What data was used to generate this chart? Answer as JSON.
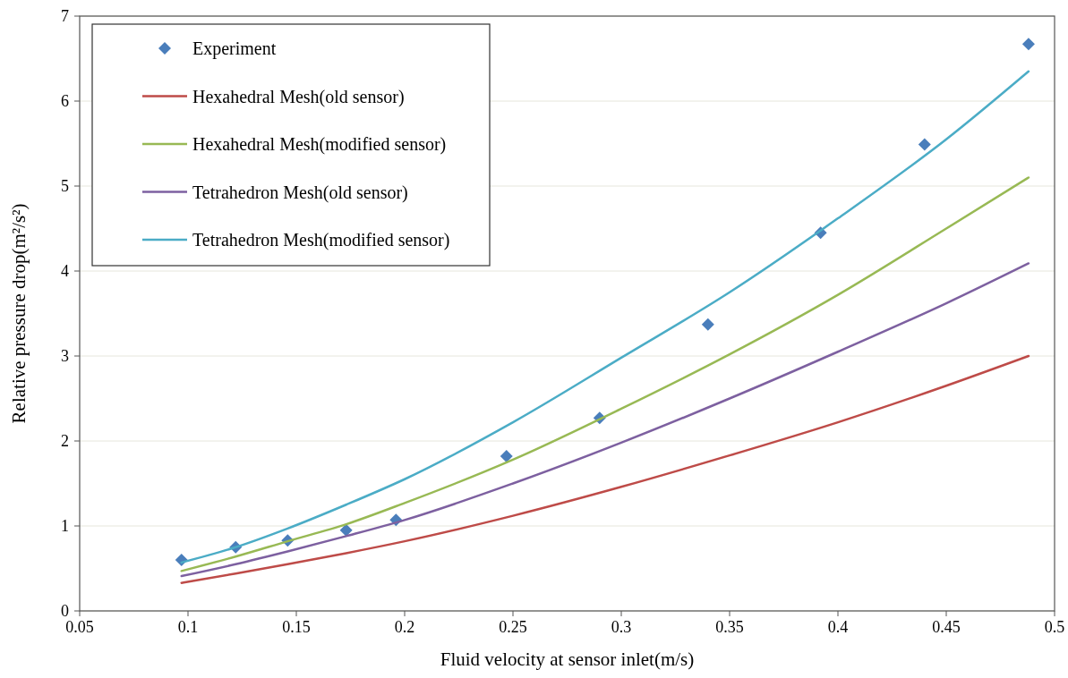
{
  "chart_data": {
    "type": "line",
    "xlabel": "Fluid velocity at sensor inlet(m/s)",
    "ylabel": "Relative pressure drop(m²/s²)",
    "xlim": [
      0.05,
      0.5
    ],
    "xticks": [
      0.05,
      0.1,
      0.15,
      0.2,
      0.25,
      0.3,
      0.35,
      0.4,
      0.45,
      0.5
    ],
    "ylim": [
      0,
      7
    ],
    "yticks": [
      0,
      1,
      2,
      3,
      4,
      5,
      6,
      7
    ],
    "grid": "y",
    "legend": "top left",
    "line_style": "solid",
    "series": [
      {
        "name": "Experiment",
        "type": "scatter",
        "marker": "diamond",
        "color": "#4a7ebb",
        "x": [
          0.097,
          0.122,
          0.146,
          0.173,
          0.196,
          0.247,
          0.29,
          0.34,
          0.392,
          0.44,
          0.488
        ],
        "values": [
          0.6,
          0.75,
          0.83,
          0.95,
          1.07,
          1.82,
          2.27,
          3.37,
          4.45,
          5.49,
          6.67
        ]
      },
      {
        "name": "Hexahedral Mesh(old sensor)",
        "color": "#be4b48",
        "x": [
          0.097,
          0.122,
          0.146,
          0.173,
          0.2,
          0.25,
          0.3,
          0.35,
          0.4,
          0.45,
          0.488
        ],
        "values": [
          0.33,
          0.44,
          0.55,
          0.68,
          0.82,
          1.12,
          1.46,
          1.83,
          2.22,
          2.65,
          3.0
        ]
      },
      {
        "name": "Hexahedral Mesh(modified sensor)",
        "color": "#98b954",
        "x": [
          0.097,
          0.122,
          0.146,
          0.173,
          0.2,
          0.25,
          0.3,
          0.35,
          0.4,
          0.45,
          0.488
        ],
        "values": [
          0.47,
          0.64,
          0.82,
          1.02,
          1.27,
          1.78,
          2.38,
          3.02,
          3.72,
          4.5,
          5.1
        ]
      },
      {
        "name": "Tetrahedron Mesh(old sensor)",
        "color": "#7d60a0",
        "x": [
          0.097,
          0.122,
          0.146,
          0.173,
          0.2,
          0.25,
          0.3,
          0.35,
          0.4,
          0.45,
          0.488
        ],
        "values": [
          0.41,
          0.55,
          0.7,
          0.88,
          1.07,
          1.5,
          1.98,
          2.5,
          3.05,
          3.62,
          4.09
        ]
      },
      {
        "name": "Tetrahedron Mesh(modified sensor)",
        "color": "#4bacc6",
        "x": [
          0.097,
          0.122,
          0.146,
          0.173,
          0.2,
          0.25,
          0.3,
          0.35,
          0.4,
          0.45,
          0.488
        ],
        "values": [
          0.57,
          0.75,
          0.97,
          1.25,
          1.55,
          2.22,
          2.98,
          3.75,
          4.62,
          5.55,
          6.35
        ]
      }
    ]
  }
}
